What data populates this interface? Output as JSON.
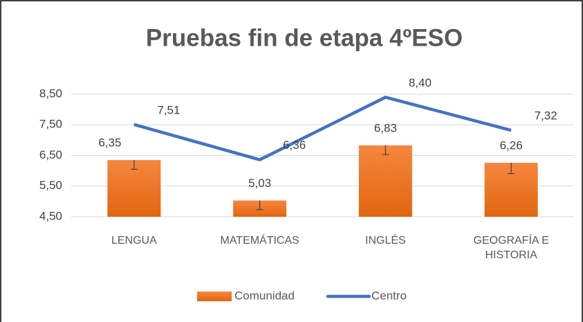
{
  "chart_data": {
    "type": "bar_line",
    "title": "Pruebas fin de etapa 4ºESO",
    "categories": [
      "LENGUA",
      "MATEMÁTICAS",
      "INGLÉS",
      "GEOGRAFÍA E HISTORIA"
    ],
    "series": [
      {
        "name": "Comunidad",
        "type": "bar",
        "color": "#ed7d31",
        "values": [
          6.35,
          5.03,
          6.83,
          6.26
        ],
        "value_labels": [
          "6,35",
          "5,03",
          "6,83",
          "6,26"
        ],
        "errors": [
          0.3,
          0.3,
          0.3,
          0.35
        ]
      },
      {
        "name": "Centro",
        "type": "line",
        "color": "#4472c4",
        "values": [
          7.51,
          6.36,
          8.4,
          7.32
        ],
        "value_labels": [
          "7,51",
          "6,36",
          "8,40",
          "7,32"
        ]
      }
    ],
    "ylim": [
      4.5,
      8.5
    ],
    "yticks": [
      {
        "value": 4.5,
        "label": "4,50"
      },
      {
        "value": 5.5,
        "label": "5,50"
      },
      {
        "value": 6.5,
        "label": "6,50"
      },
      {
        "value": 7.5,
        "label": "7,50"
      },
      {
        "value": 8.5,
        "label": "8,50"
      }
    ],
    "grid": true,
    "legend": "bottom"
  }
}
